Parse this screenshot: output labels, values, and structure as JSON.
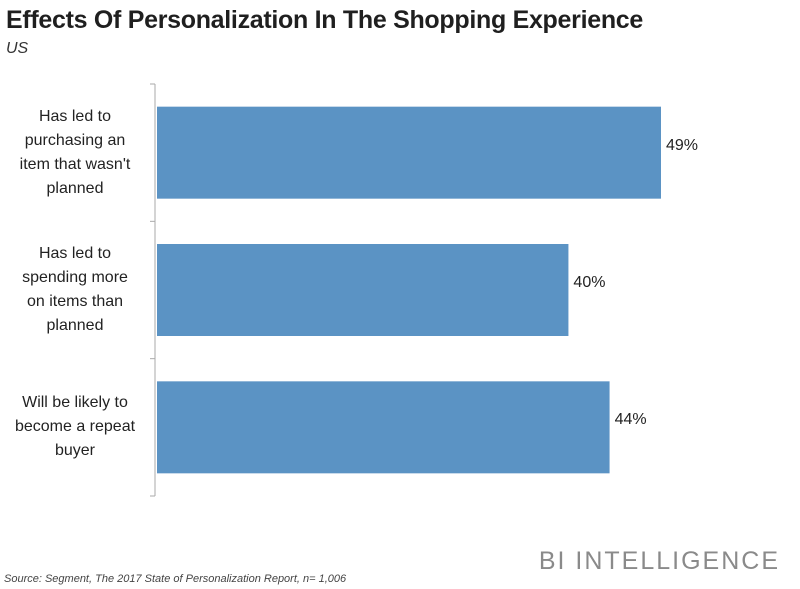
{
  "title": "Effects Of Personalization In The Shopping Experience",
  "subtitle": "US",
  "brand": "BI INTELLIGENCE",
  "source": "Source: Segment, The 2017 State of Personalization Report, n= 1,006",
  "colors": {
    "bar": "#5b93c4",
    "axis": "#aaaaaa"
  },
  "chart_data": {
    "type": "bar",
    "orientation": "horizontal",
    "categories": [
      [
        "Has led to",
        "purchasing an",
        "item that wasn't",
        "planned"
      ],
      [
        "Has led to",
        "spending more",
        "on items than",
        "planned"
      ],
      [
        "Will be likely to",
        "become a repeat",
        "buyer"
      ]
    ],
    "values": [
      49,
      40,
      44
    ],
    "value_labels": [
      "49%",
      "40%",
      "44%"
    ],
    "title": "Effects Of Personalization In The Shopping Experience",
    "subtitle": "US",
    "xlim": [
      0,
      49
    ],
    "grid": false,
    "legend": "none"
  }
}
